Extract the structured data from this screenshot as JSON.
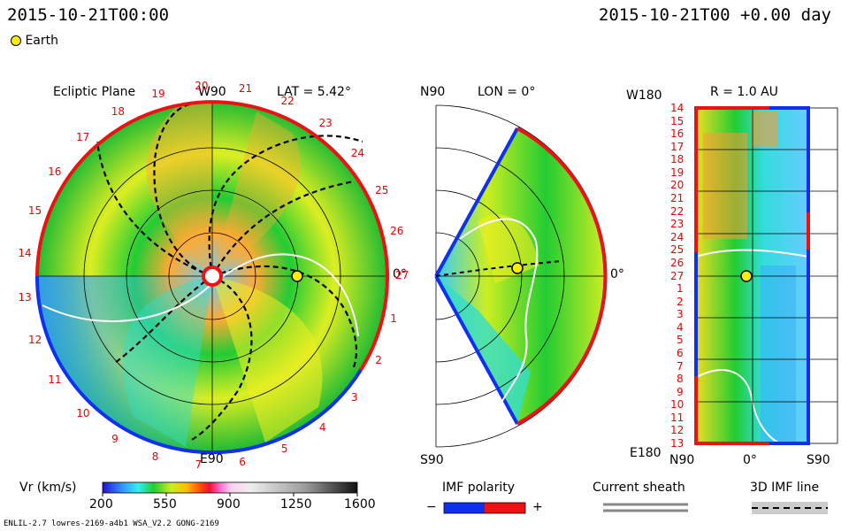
{
  "header": {
    "date_left": "2015-10-21T00:00",
    "date_right": "2015-10-21T00  +0.00 day",
    "legend_earth": "Earth"
  },
  "colors": {
    "outer_positive": "#ee1111",
    "outer_negative": "#1030ee",
    "axes": "#000000",
    "current_sheath": "#888888"
  },
  "panels": {
    "ecliptic": {
      "title": "Ecliptic Plane",
      "lat": "LAT = 5.42°",
      "top": "W90",
      "bottom": "E90",
      "right": "0°",
      "carrington_labels": [
        "1",
        "2",
        "3",
        "4",
        "5",
        "6",
        "7",
        "8",
        "9",
        "10",
        "11",
        "12",
        "13",
        "14",
        "15",
        "16",
        "17",
        "18",
        "19",
        "20",
        "21",
        "22",
        "23",
        "24",
        "25",
        "26",
        "27"
      ]
    },
    "meridional": {
      "top": "N90",
      "title": "LON = 0°",
      "bottom": "S90",
      "right": "0°"
    },
    "radial": {
      "title": "R = 1.0 AU",
      "top_left": "W180",
      "bottom_left": "E180",
      "x_left": "N90",
      "x_mid": "0°",
      "x_right": "S90",
      "y_labels": [
        "14",
        "15",
        "16",
        "17",
        "18",
        "19",
        "20",
        "21",
        "22",
        "23",
        "24",
        "25",
        "26",
        "27",
        "1",
        "2",
        "3",
        "4",
        "5",
        "6",
        "7",
        "8",
        "9",
        "10",
        "11",
        "12",
        "13"
      ]
    }
  },
  "colorbar": {
    "label": "Vr (km/s)",
    "ticks": [
      "200",
      "550",
      "900",
      "1250",
      "1600"
    ]
  },
  "legend": {
    "imf_polarity": "IMF polarity",
    "minus": "−",
    "plus": "+",
    "current_sheath": "Current sheath",
    "imf_line": "3D IMF line"
  },
  "footer": {
    "model": "ENLIL-2.7 lowres-2169-a4b1 WSA_V2.2 GONG-2169"
  },
  "chart_data": [
    {
      "type": "heatmap",
      "title": "Ecliptic Plane",
      "quantity": "Vr (km/s)",
      "range": [
        200,
        1600
      ],
      "subtitle": "LAT = 5.42°",
      "earth_position": {
        "angle_deg": 0,
        "r_au": 1.0
      }
    },
    {
      "type": "heatmap",
      "title": "LON = 0°",
      "quantity": "Vr (km/s)",
      "range": [
        200,
        1600
      ],
      "latitude_range_deg": [
        -60,
        60
      ],
      "earth_position": {
        "lat_deg": 5.42,
        "r_au": 1.0
      }
    },
    {
      "type": "heatmap",
      "title": "R = 1.0 AU",
      "quantity": "Vr (km/s)",
      "range": [
        200,
        1600
      ],
      "y_axis": [
        "W180",
        "E180"
      ],
      "x_axis": [
        "N90",
        "0°",
        "S90"
      ]
    }
  ]
}
